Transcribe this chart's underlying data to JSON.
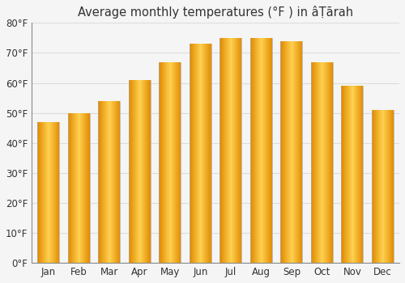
{
  "title": "Average monthly temperatures (°F ) in âāṬārah",
  "months": [
    "Jan",
    "Feb",
    "Mar",
    "Apr",
    "May",
    "Jun",
    "Jul",
    "Aug",
    "Sep",
    "Oct",
    "Nov",
    "Dec"
  ],
  "values": [
    47,
    50,
    54,
    61,
    67,
    73,
    75,
    75,
    74,
    67,
    59,
    51
  ],
  "bar_color_main": "#F5A623",
  "bar_color_light": "#FFD060",
  "bar_color_dark": "#E08800",
  "bar_edge_color": "#999999",
  "background_color": "#f5f5f5",
  "plot_bg_color": "#f5f5f5",
  "grid_color": "#dddddd",
  "ylim": [
    0,
    80
  ],
  "yticks": [
    0,
    10,
    20,
    30,
    40,
    50,
    60,
    70,
    80
  ],
  "ytick_labels": [
    "0°F",
    "10°F",
    "20°F",
    "30°F",
    "40°F",
    "50°F",
    "60°F",
    "70°F",
    "80°F"
  ],
  "title_fontsize": 10.5,
  "tick_fontsize": 8.5
}
